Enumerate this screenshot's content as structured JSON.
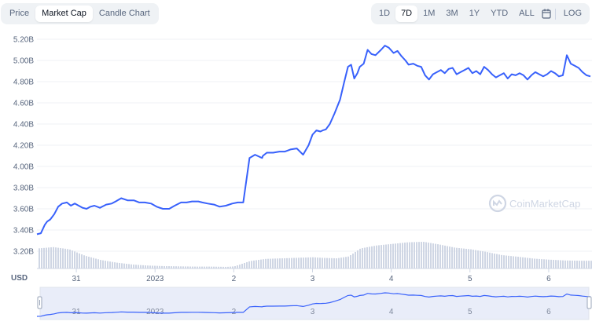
{
  "chart_tabs": [
    {
      "label": "Price",
      "active": false
    },
    {
      "label": "Market Cap",
      "active": true
    },
    {
      "label": "Candle Chart",
      "active": false
    }
  ],
  "ranges": [
    {
      "label": "1D",
      "active": false
    },
    {
      "label": "7D",
      "active": true
    },
    {
      "label": "1M",
      "active": false
    },
    {
      "label": "3M",
      "active": false
    },
    {
      "label": "1Y",
      "active": false
    },
    {
      "label": "YTD",
      "active": false
    },
    {
      "label": "ALL",
      "active": false
    }
  ],
  "calendar_icon": "calendar-icon",
  "log_label": "LOG",
  "watermark": "CoinMarketCap",
  "colors": {
    "line": "#3861fb",
    "volume": "#cfd6e4",
    "accent_bg": "#eff2f5"
  },
  "chart_data": {
    "type": "line",
    "currency_label": "USD",
    "y_ticks": [
      "5.20B",
      "5.00B",
      "4.80B",
      "4.60B",
      "4.40B",
      "4.20B",
      "4.00B",
      "3.80B",
      "3.60B",
      "3.40B",
      "3.20B"
    ],
    "ylim": [
      3.2,
      5.2
    ],
    "y_unit": "B",
    "x_ticks": [
      {
        "label": "31",
        "x": 0.5
      },
      {
        "label": "2023",
        "x": 1.5
      },
      {
        "label": "2",
        "x": 2.5
      },
      {
        "label": "3",
        "x": 3.5
      },
      {
        "label": "4",
        "x": 4.5
      },
      {
        "label": "5",
        "x": 5.5
      },
      {
        "label": "6",
        "x": 6.5
      }
    ],
    "xlim": [
      0,
      7.05
    ],
    "series": [
      {
        "x": [
          0.0,
          0.05,
          0.1,
          0.13,
          0.17,
          0.22,
          0.27,
          0.32,
          0.38,
          0.43,
          0.48,
          0.53,
          0.58,
          0.63,
          0.68,
          0.73,
          0.8,
          0.88,
          0.95,
          1.0,
          1.07,
          1.15,
          1.23,
          1.3,
          1.37,
          1.45,
          1.52,
          1.6,
          1.68,
          1.75,
          1.83,
          1.9,
          1.97,
          2.05,
          2.1,
          2.17,
          2.25,
          2.32,
          2.4,
          2.48,
          2.55,
          2.62,
          2.7,
          2.77,
          2.83,
          2.86,
          2.87,
          2.92,
          3.0,
          3.08,
          3.15,
          3.22,
          3.3,
          3.38,
          3.45,
          3.5,
          3.55,
          3.6,
          3.63,
          3.67,
          3.72,
          3.78,
          3.85,
          3.9,
          3.95,
          3.99,
          4.03,
          4.07,
          4.1,
          4.15,
          4.2,
          4.25,
          4.3,
          4.37,
          4.42,
          4.47,
          4.53,
          4.58,
          4.63,
          4.68,
          4.72,
          4.78,
          4.83,
          4.88,
          4.93,
          4.98,
          5.03,
          5.08,
          5.13,
          5.18,
          5.23,
          5.28,
          5.33,
          5.38,
          5.43,
          5.48,
          5.53,
          5.58,
          5.63,
          5.68,
          5.73,
          5.78,
          5.83,
          5.88,
          5.93,
          5.98,
          6.03,
          6.08,
          6.13,
          6.18,
          6.23,
          6.28,
          6.33,
          6.38,
          6.43,
          6.48,
          6.53,
          6.58,
          6.63,
          6.68,
          6.73,
          6.78,
          6.83,
          6.88,
          6.93,
          6.98,
          7.03
        ],
        "values": [
          3.36,
          3.37,
          3.45,
          3.48,
          3.5,
          3.55,
          3.62,
          3.65,
          3.66,
          3.63,
          3.65,
          3.63,
          3.61,
          3.6,
          3.62,
          3.63,
          3.61,
          3.64,
          3.65,
          3.67,
          3.7,
          3.68,
          3.68,
          3.66,
          3.66,
          3.65,
          3.62,
          3.6,
          3.6,
          3.63,
          3.66,
          3.66,
          3.67,
          3.67,
          3.66,
          3.65,
          3.64,
          3.62,
          3.63,
          3.65,
          3.66,
          3.66,
          4.08,
          4.11,
          4.09,
          4.08,
          4.1,
          4.13,
          4.13,
          4.14,
          4.14,
          4.16,
          4.17,
          4.11,
          4.2,
          4.3,
          4.34,
          4.33,
          4.34,
          4.35,
          4.4,
          4.5,
          4.63,
          4.79,
          4.94,
          4.96,
          4.83,
          4.88,
          4.94,
          4.97,
          5.1,
          5.06,
          5.05,
          5.1,
          5.14,
          5.12,
          5.07,
          5.09,
          5.04,
          5.0,
          4.96,
          4.97,
          4.95,
          4.94,
          4.86,
          4.82,
          4.87,
          4.89,
          4.91,
          4.88,
          4.92,
          4.93,
          4.87,
          4.89,
          4.91,
          4.93,
          4.88,
          4.9,
          4.87,
          4.94,
          4.91,
          4.87,
          4.84,
          4.86,
          4.88,
          4.83,
          4.87,
          4.86,
          4.88,
          4.86,
          4.82,
          4.86,
          4.89,
          4.87,
          4.85,
          4.87,
          4.9,
          4.88,
          4.85,
          4.86,
          5.05,
          4.97,
          4.95,
          4.93,
          4.89,
          4.86,
          4.85
        ]
      }
    ],
    "volume": {
      "x": [
        0.0,
        0.2,
        0.4,
        0.6,
        0.8,
        1.0,
        1.2,
        1.4,
        1.6,
        1.8,
        2.0,
        2.2,
        2.4,
        2.5,
        2.7,
        2.9,
        3.1,
        3.3,
        3.5,
        3.6,
        3.8,
        3.95,
        4.1,
        4.3,
        4.5,
        4.7,
        4.9,
        5.1,
        5.3,
        5.5,
        5.7,
        5.9,
        6.1,
        6.3,
        6.5,
        6.7,
        6.9,
        7.05
      ],
      "values": [
        0.75,
        0.8,
        0.72,
        0.48,
        0.32,
        0.22,
        0.15,
        0.11,
        0.09,
        0.08,
        0.07,
        0.07,
        0.06,
        0.08,
        0.28,
        0.36,
        0.38,
        0.4,
        0.42,
        0.4,
        0.38,
        0.45,
        0.75,
        0.86,
        0.92,
        0.98,
        1.0,
        0.9,
        0.78,
        0.72,
        0.62,
        0.5,
        0.44,
        0.37,
        0.33,
        0.3,
        0.29,
        0.29
      ]
    }
  }
}
